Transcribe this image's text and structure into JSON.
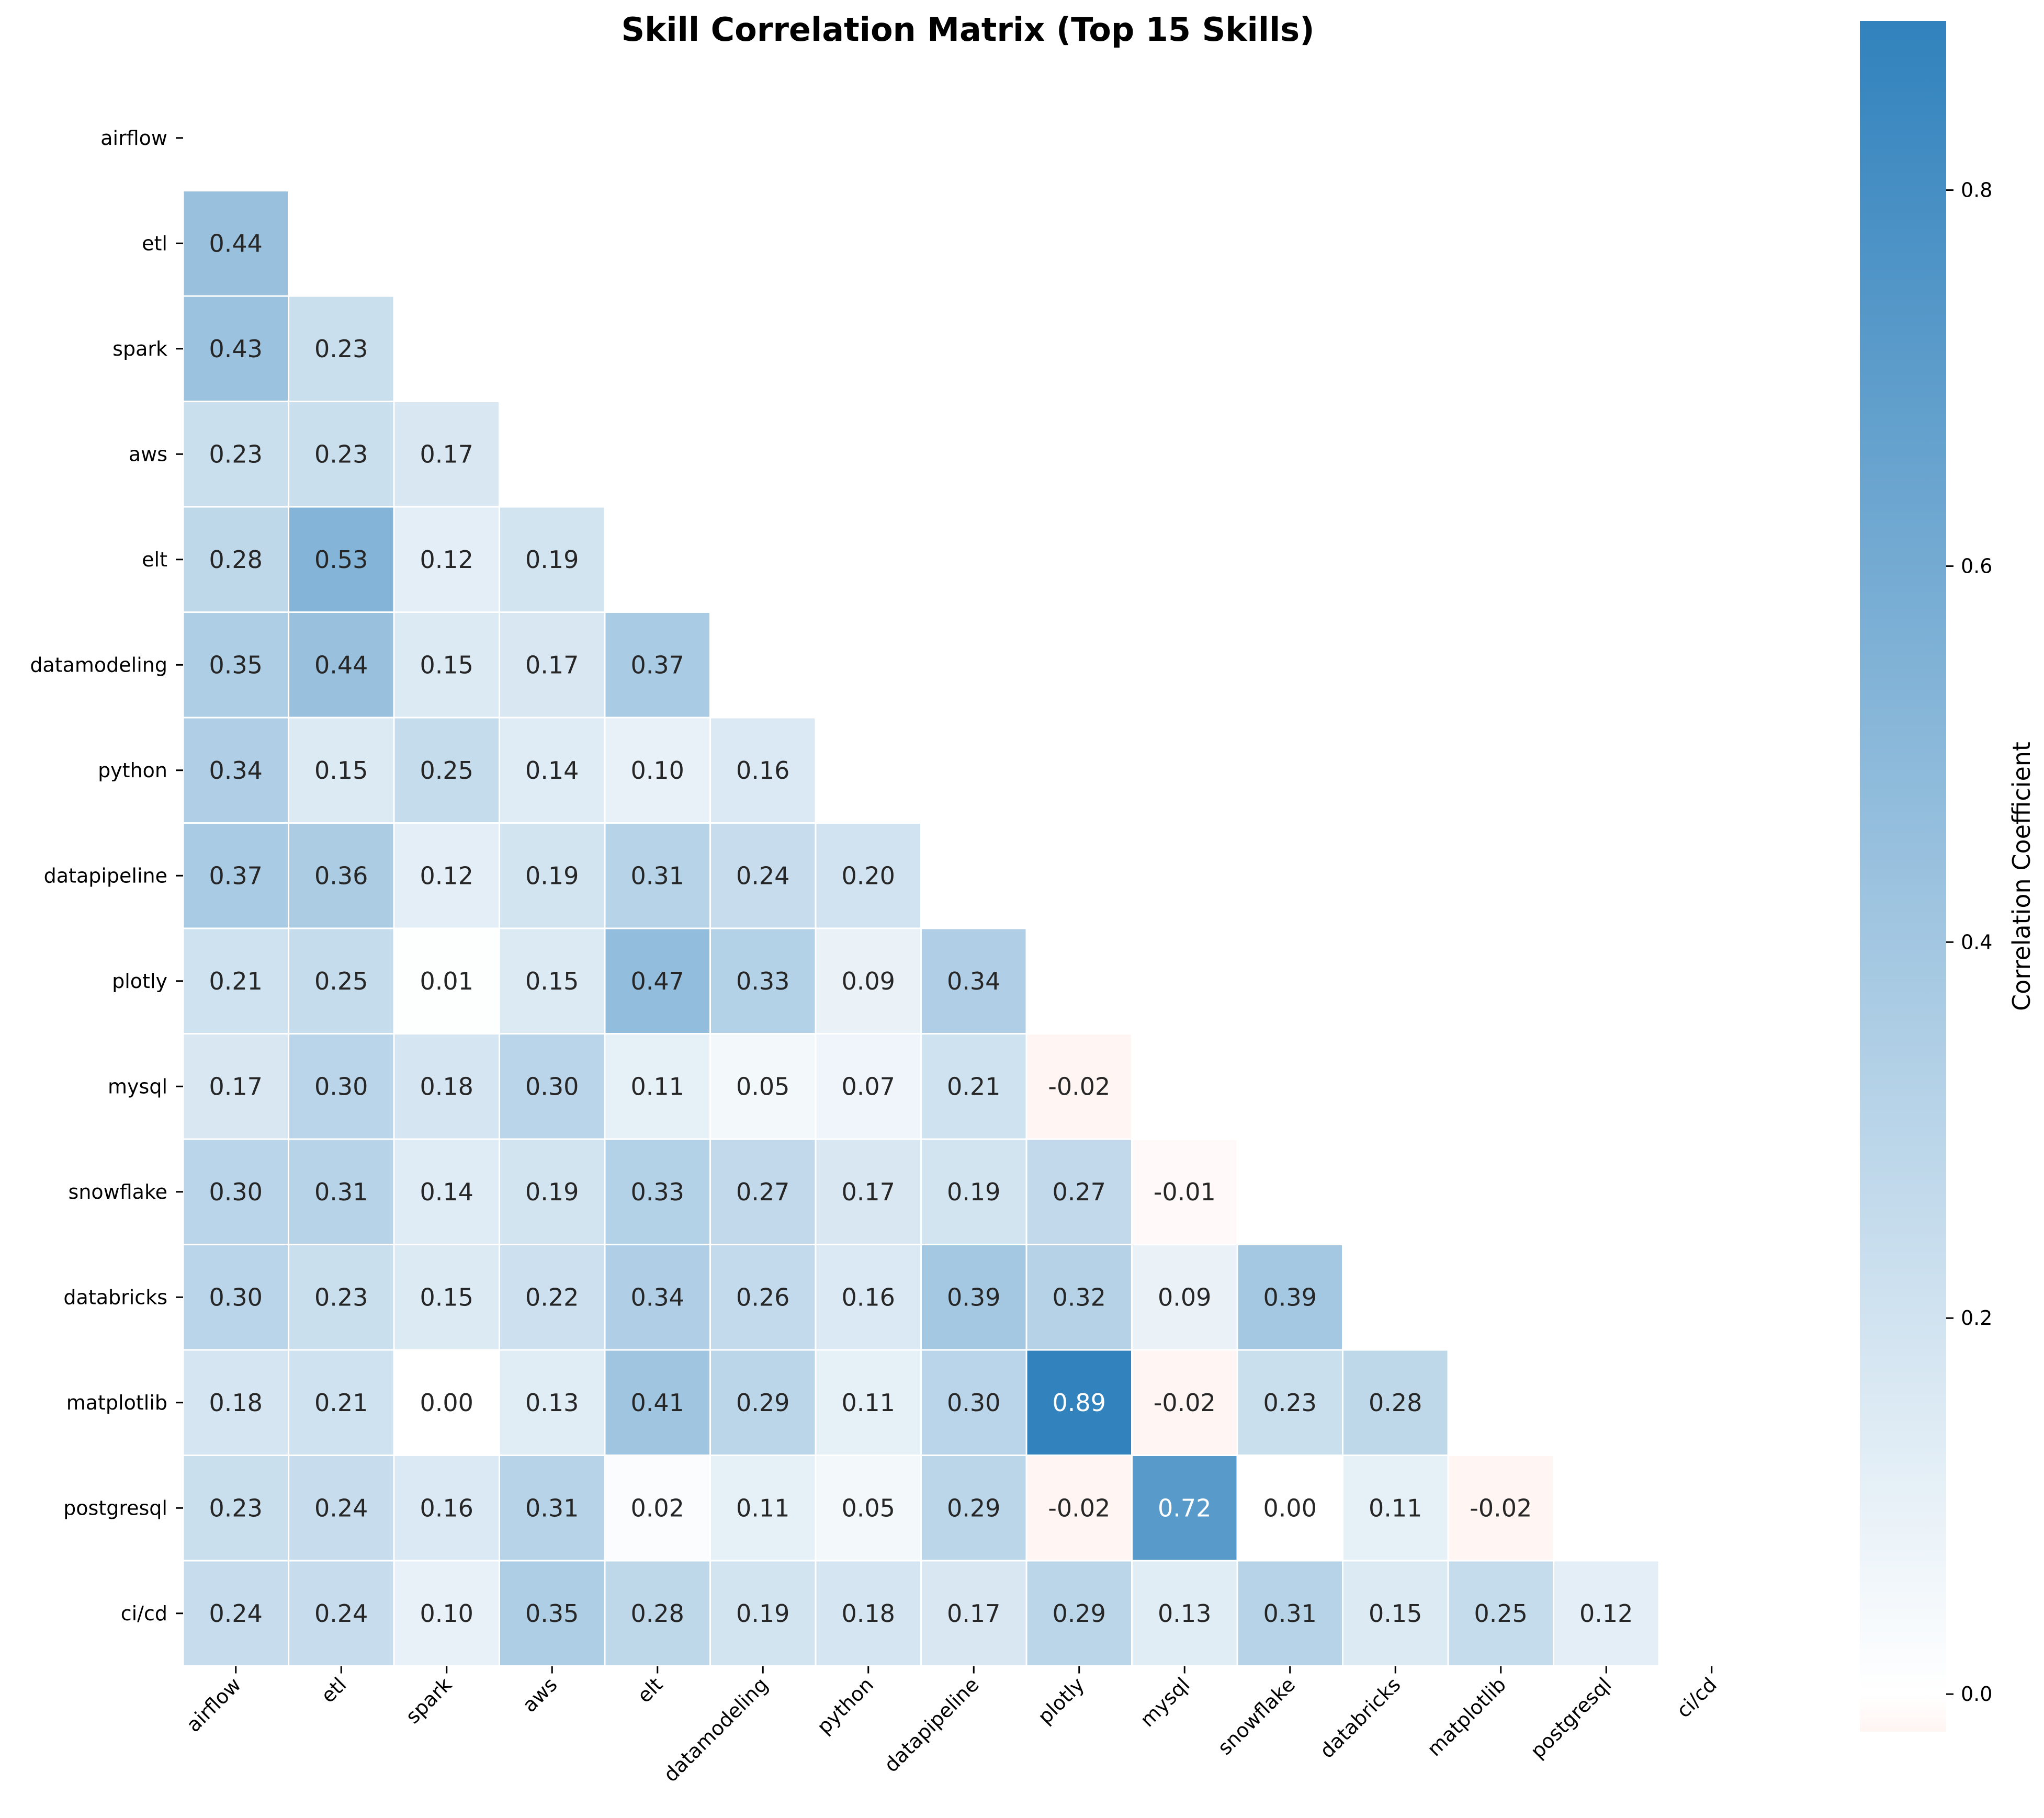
{
  "chart_data": {
    "type": "heatmap",
    "title": "Skill Correlation Matrix (Top 15 Skills)",
    "mask": "upper-triangle-and-diagonal",
    "labels": [
      "airflow",
      "etl",
      "spark",
      "aws",
      "elt",
      "datamodeling",
      "python",
      "datapipeline",
      "plotly",
      "mysql",
      "snowflake",
      "databricks",
      "matplotlib",
      "postgresql",
      "ci/cd"
    ],
    "lower_triangle": [
      [],
      [
        0.44
      ],
      [
        0.43,
        0.23
      ],
      [
        0.23,
        0.23,
        0.17
      ],
      [
        0.28,
        0.53,
        0.12,
        0.19
      ],
      [
        0.35,
        0.44,
        0.15,
        0.17,
        0.37
      ],
      [
        0.34,
        0.15,
        0.25,
        0.14,
        0.1,
        0.16
      ],
      [
        0.37,
        0.36,
        0.12,
        0.19,
        0.31,
        0.24,
        0.2
      ],
      [
        0.21,
        0.25,
        0.01,
        0.15,
        0.47,
        0.33,
        0.09,
        0.34
      ],
      [
        0.17,
        0.3,
        0.18,
        0.3,
        0.11,
        0.05,
        0.07,
        0.21,
        -0.02
      ],
      [
        0.3,
        0.31,
        0.14,
        0.19,
        0.33,
        0.27,
        0.17,
        0.19,
        0.27,
        -0.01
      ],
      [
        0.3,
        0.23,
        0.15,
        0.22,
        0.34,
        0.26,
        0.16,
        0.39,
        0.32,
        0.09,
        0.39
      ],
      [
        0.18,
        0.21,
        0.0,
        0.13,
        0.41,
        0.29,
        0.11,
        0.3,
        0.89,
        -0.02,
        0.23,
        0.28
      ],
      [
        0.23,
        0.24,
        0.16,
        0.31,
        0.02,
        0.11,
        0.05,
        0.29,
        -0.02,
        0.72,
        0.0,
        0.11,
        -0.02
      ],
      [
        0.24,
        0.24,
        0.1,
        0.35,
        0.28,
        0.19,
        0.18,
        0.17,
        0.29,
        0.13,
        0.31,
        0.15,
        0.25,
        0.12
      ]
    ],
    "colorbar": {
      "label": "Correlation Coefficient",
      "vmin": -0.02,
      "vmax": 0.89,
      "ticks": [
        0.0,
        0.2,
        0.4,
        0.6,
        0.8
      ],
      "tick_labels": [
        "0.0",
        "0.2",
        "0.4",
        "0.6",
        "0.8"
      ],
      "colormap": [
        "#fff5f3",
        "#ffffff",
        "#3182bd"
      ]
    },
    "grid": false,
    "legend": "colorbar-right"
  }
}
